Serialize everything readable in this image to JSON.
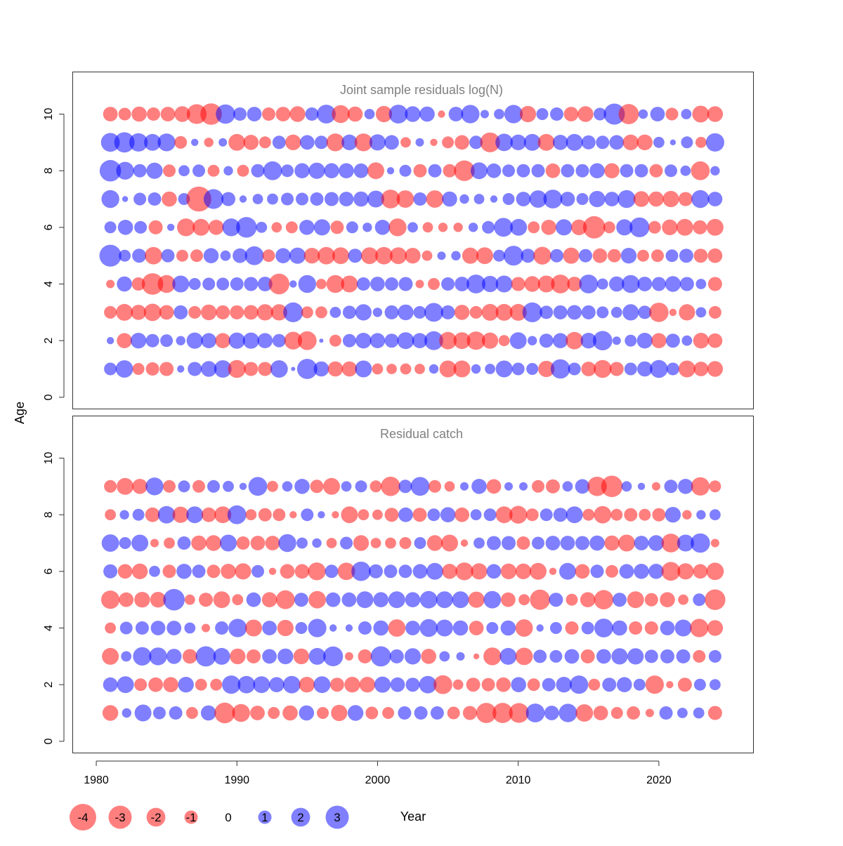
{
  "chart_data": {
    "type": "bubble",
    "xlabel": "Year",
    "ylabel": "Age",
    "xlim": [
      1978.3,
      2026.7
    ],
    "xticks": [
      1980,
      1990,
      2000,
      2010,
      2020
    ],
    "xtick_labels": [
      "1980",
      "1990",
      "2000",
      "2010",
      "2020"
    ],
    "yticks": [
      0,
      2,
      4,
      6,
      8,
      10
    ],
    "ytick_labels": [
      "0",
      "2",
      "4",
      "6",
      "8",
      "10"
    ],
    "color_negative": "#ff0000",
    "color_positive": "#0000ff",
    "legend": {
      "placement": "bottom",
      "values": [
        -4,
        -3,
        -2,
        -1,
        0,
        1,
        2,
        3
      ],
      "labels": [
        "-4",
        "-3",
        "-2",
        "-1",
        "0",
        "1",
        "2",
        "3"
      ]
    },
    "panels": [
      {
        "title": "Joint sample residuals log(N)",
        "ylim": [
          -0.4,
          11.5
        ],
        "years_start": 1981,
        "years_end": 2024,
        "ages": [
          1,
          2,
          3,
          4,
          5,
          6,
          7,
          8,
          9,
          10
        ],
        "residuals": {
          "10": [
            -1.2,
            -0.9,
            -1.3,
            -1.0,
            -1.2,
            -1.4,
            -2.2,
            -2.6,
            2.1,
            1.0,
            1.2,
            -1.0,
            -1.2,
            -1.4,
            1.0,
            2.0,
            -1.8,
            -1.3,
            0.6,
            -1.5,
            2.0,
            1.4,
            1.3,
            -0.3,
            1.2,
            1.9,
            0.4,
            0.6,
            1.9,
            -1.5,
            0.8,
            1.0,
            -1.2,
            -1.4,
            0.9,
            2.5,
            -2.3,
            0.5,
            1.2,
            -0.9,
            0.6,
            -1.6,
            -1.4
          ],
          "9": [
            2.0,
            2.3,
            1.9,
            1.6,
            1.8,
            -0.9,
            0.3,
            -0.5,
            0.4,
            -1.6,
            -1.3,
            -0.8,
            1.0,
            -1.4,
            1.2,
            1.0,
            -1.8,
            1.4,
            -1.8,
            1.5,
            1.2,
            -0.6,
            0.4,
            -0.3,
            -0.8,
            -1.2,
            1.0,
            -2.2,
            1.7,
            1.4,
            1.6,
            -1.6,
            1.3,
            1.6,
            1.1,
            1.0,
            1.2,
            -1.4,
            -1.4,
            0.7,
            0.2,
            0.8,
            -0.7,
            1.9
          ],
          "8": [
            2.6,
            1.8,
            1.0,
            1.5,
            -0.9,
            0.7,
            0.9,
            -0.8,
            0.5,
            -0.8,
            1.0,
            2.0,
            0.9,
            1.3,
            1.5,
            1.3,
            1.3,
            1.2,
            -1.6,
            0.3,
            0.8,
            -1.0,
            1.0,
            -1.0,
            -2.4,
            1.6,
            1.2,
            0.9,
            1.0,
            1.0,
            -1.2,
            1.0,
            1.0,
            1.3,
            -1.3,
            1.0,
            1.0,
            -1.0,
            0.9,
            0.6,
            -2.0,
            0.5
          ],
          "7": [
            1.8,
            0.2,
            0.9,
            1.0,
            -1.3,
            0.8,
            -3.5,
            2.2,
            1.1,
            0.3,
            0.6,
            0.7,
            0.9,
            0.9,
            1.0,
            1.1,
            1.2,
            1.3,
            1.6,
            -2.0,
            -1.7,
            1.0,
            -1.7,
            1.3,
            0.5,
            0.6,
            0.3,
            0.8,
            1.2,
            1.7,
            2.0,
            1.2,
            0.8,
            1.5,
            1.2,
            1.8,
            -1.4,
            -1.3,
            -1.5,
            -1.1,
            1.8,
            1.2
          ],
          "6": [
            0.8,
            1.3,
            0.9,
            -1.1,
            0.3,
            -1.8,
            -1.6,
            -1.3,
            1.8,
            2.4,
            0.7,
            -0.6,
            -0.8,
            1.3,
            1.5,
            -1.0,
            0.8,
            0.5,
            1.3,
            -1.8,
            0.6,
            -0.6,
            -0.5,
            -0.5,
            0.5,
            0.9,
            2.0,
            1.6,
            -0.8,
            -1.3,
            1.5,
            -1.4,
            -2.8,
            -0.8,
            1.5,
            2.2,
            -0.9,
            -1.4,
            -1.6,
            -1.1,
            -1.6
          ],
          "5": [
            2.7,
            0.8,
            1.1,
            -1.7,
            1.0,
            -0.8,
            -0.9,
            1.3,
            0.6,
            1.2,
            2.0,
            -0.9,
            1.3,
            1.5,
            -1.4,
            -1.7,
            -1.6,
            1.1,
            -1.6,
            -1.7,
            -1.6,
            -1.4,
            -0.6,
            0.4,
            0.5,
            -1.5,
            -1.6,
            0.8,
            2.2,
            1.1,
            -1.8,
            1.0,
            -1.5,
            1.0,
            -1.2,
            -1.0,
            1.4,
            -0.8,
            -0.9,
            0.9,
            1.1,
            -1.1,
            -1.2
          ],
          "4": [
            -0.4,
            1.3,
            -1.0,
            -2.6,
            -1.8,
            1.6,
            0.8,
            0.9,
            0.9,
            1.0,
            1.1,
            1.2,
            -2.4,
            0.3,
            1.8,
            -0.6,
            -1.8,
            -1.6,
            1.0,
            1.2,
            1.0,
            1.1,
            -0.4,
            -0.8,
            1.0,
            1.2,
            2.0,
            1.5,
            1.6,
            -1.1,
            -1.4,
            -1.6,
            -2.0,
            -1.2,
            2.0,
            0.7,
            1.3,
            1.8,
            1.2,
            1.1,
            1.4,
            1.1,
            0.6,
            -1.1
          ],
          "3": [
            -0.9,
            -1.6,
            -1.3,
            -1.7,
            -1.2,
            1.1,
            -0.9,
            -1.4,
            -1.1,
            -1.1,
            -1.2,
            -1.5,
            -1.5,
            2.2,
            -0.8,
            -0.8,
            0.7,
            1.0,
            1.5,
            0.5,
            1.1,
            1.4,
            0.9,
            2.0,
            1.1,
            -1.3,
            -0.9,
            -1.6,
            -1.6,
            -1.6,
            2.2,
            1.0,
            1.1,
            1.2,
            1.1,
            0.8,
            0.7,
            1.5,
            1.0,
            -2.1,
            -0.3,
            -1.5,
            0.6,
            -0.9
          ],
          "2": [
            0.3,
            -1.3,
            1.4,
            1.0,
            0.9,
            0.5,
            1.5,
            1.3,
            -1.3,
            1.5,
            1.5,
            1.3,
            1.0,
            -1.8,
            -2.0,
            0.1,
            -0.8,
            1.0,
            1.4,
            1.3,
            1.1,
            1.6,
            1.3,
            2.0,
            -1.7,
            -1.6,
            -1.9,
            -1.5,
            -0.7,
            1.6,
            0.5,
            1.1,
            1.3,
            -1.7,
            1.4,
            2.1,
            0.4,
            0.8,
            1.4,
            -1.3,
            1.1,
            0.6,
            -1.4,
            -1.2
          ],
          "1": [
            0.9,
            1.7,
            -0.8,
            -1.0,
            -1.1,
            0.3,
            1.1,
            1.4,
            1.7,
            -1.8,
            -1.1,
            -1.1,
            1.7,
            0.1,
            2.3,
            1.3,
            -1.3,
            -1.3,
            1.6,
            -0.7,
            -0.6,
            -0.7,
            -0.6,
            0.5,
            -1.6,
            -1.6,
            0.5,
            0.6,
            1.6,
            0.9,
            0.8,
            -1.5,
            2.1,
            0.9,
            -1.2,
            -1.8,
            -1.1,
            0.9,
            1.3,
            1.8,
            0.9,
            -1.6,
            -1.2,
            -1.4
          ]
        }
      },
      {
        "title": "Residual catch",
        "ylim": [
          -0.4,
          11.5
        ],
        "years_start": 1981,
        "years_end": 2024,
        "ages": [
          1,
          2,
          3,
          4,
          5,
          6,
          7,
          8,
          9
        ],
        "residuals": {
          "9": [
            -0.9,
            -1.6,
            -1.3,
            1.8,
            -0.9,
            0.8,
            -0.9,
            0.9,
            0.7,
            0.3,
            2.0,
            -0.7,
            0.6,
            1.3,
            -1.0,
            -1.6,
            0.6,
            0.8,
            -0.8,
            -2.1,
            1.0,
            2.0,
            -0.9,
            -0.6,
            0.4,
            1.3,
            -1.2,
            0.4,
            0.4,
            -0.9,
            -1.1,
            0.6,
            1.2,
            -2.1,
            -2.6,
            0.6,
            0.3,
            -0.4,
            1.0,
            1.3,
            -1.9,
            -0.8
          ],
          "8": [
            -0.7,
            0.5,
            0.8,
            -1.2,
            1.7,
            -1.5,
            1.6,
            -1.2,
            -1.6,
            2.0,
            -0.7,
            -1.0,
            -0.9,
            -0.3,
            0.9,
            0.3,
            -0.3,
            -1.6,
            -0.7,
            -0.6,
            -1.1,
            1.2,
            -1.1,
            0.9,
            1.3,
            -1.2,
            0.7,
            0.9,
            -1.6,
            -1.8,
            -0.9,
            0.9,
            1.1,
            1.6,
            -0.8,
            -1.7,
            -0.8,
            -1.0,
            -0.8,
            -1.0,
            1.4,
            -0.5,
            0.5,
            0.7
          ],
          "7": [
            1.7,
            0.8,
            1.6,
            -0.4,
            -0.7,
            1.0,
            -1.3,
            -1.4,
            1.6,
            -1.0,
            -1.2,
            -1.2,
            1.8,
            0.7,
            0.5,
            -0.6,
            0.9,
            -1.4,
            -0.6,
            -0.7,
            -0.8,
            0.8,
            -1.4,
            -1.6,
            -0.3,
            0.7,
            1.1,
            1.1,
            -1.0,
            0.9,
            1.2,
            1.2,
            1.1,
            1.3,
            -1.3,
            -1.6,
            1.2,
            1.4,
            -2.0,
            1.6,
            2.1,
            -0.4
          ],
          "6": [
            1.1,
            -1.2,
            -1.4,
            0.7,
            -1.0,
            1.3,
            1.0,
            -1.0,
            -1.3,
            -1.5,
            0.9,
            -0.3,
            -1.2,
            -1.2,
            -1.8,
            1.0,
            -1.7,
            2.1,
            1.1,
            1.0,
            1.0,
            1.2,
            1.6,
            -1.3,
            -1.8,
            -1.5,
            1.2,
            -1.4,
            -1.4,
            -1.6,
            -0.3,
            1.6,
            -1.2,
            1.0,
            -0.9,
            1.2,
            1.3,
            1.3,
            -2.0,
            -1.5,
            -1.2,
            -1.7
          ],
          "5": [
            -1.9,
            -1.2,
            -1.4,
            -1.4,
            2.6,
            -0.6,
            -1.1,
            -1.6,
            -0.7,
            1.2,
            -1.3,
            -2.0,
            1.1,
            -1.7,
            1.2,
            1.2,
            1.6,
            1.3,
            1.6,
            1.3,
            1.7,
            1.6,
            1.6,
            -1.5,
            1.7,
            -1.2,
            -0.7,
            -2.3,
            1.1,
            -0.8,
            -1.3,
            -2.1,
            1.1,
            -1.6,
            -1.0,
            -1.3,
            -0.6,
            0.9,
            -2.4
          ],
          "4": [
            -0.7,
            0.9,
            1.0,
            1.2,
            1.2,
            0.7,
            -0.4,
            1.0,
            1.9,
            -1.6,
            1.2,
            -1.5,
            0.8,
            1.9,
            0.3,
            0.3,
            1.0,
            1.3,
            -1.7,
            1.2,
            1.8,
            1.6,
            1.3,
            -1.2,
            0.8,
            1.3,
            -1.7,
            0.3,
            0.8,
            -1.0,
            0.9,
            2.0,
            1.3,
            -1.0,
            -1.0,
            1.2,
            1.6,
            -1.9,
            -1.4
          ],
          "3": [
            -1.6,
            0.6,
            1.9,
            1.8,
            1.3,
            -1.2,
            2.3,
            1.6,
            -1.4,
            -1.1,
            1.2,
            1.4,
            -1.4,
            1.6,
            2.2,
            -0.4,
            -1.1,
            2.3,
            1.1,
            1.5,
            -1.3,
            0.6,
            0.4,
            -0.2,
            -1.8,
            1.6,
            -1.7,
            1.0,
            0.9,
            1.2,
            -1.1,
            1.2,
            1.5,
            1.5,
            1.0,
            1.1,
            1.1,
            -0.9,
            0.9
          ],
          "2": [
            1.2,
            1.6,
            -0.9,
            -1.2,
            -1.3,
            1.4,
            -0.8,
            -0.8,
            1.9,
            1.7,
            1.6,
            1.3,
            1.7,
            -1.4,
            1.6,
            -1.1,
            -1.4,
            -1.4,
            1.5,
            1.2,
            1.1,
            1.7,
            -2.0,
            -0.6,
            -1.1,
            -1.0,
            -1.2,
            1.3,
            -0.9,
            1.0,
            1.4,
            1.9,
            -0.8,
            1.1,
            1.3,
            0.8,
            -1.9,
            -0.3,
            -1.1,
            0.8,
            0.7
          ],
          "1": [
            -1.4,
            0.5,
            1.6,
            0.9,
            1.0,
            -0.8,
            1.3,
            -2.4,
            -1.8,
            -1.2,
            -0.8,
            -1.3,
            1.3,
            -0.8,
            -1.5,
            1.4,
            -0.9,
            -0.8,
            1.0,
            1.0,
            1.0,
            -0.9,
            -1.1,
            -2.3,
            -2.3,
            -2.2,
            2.0,
            1.2,
            1.9,
            -1.7,
            -1.2,
            -0.8,
            -1.0,
            -0.4,
            1.0,
            0.6,
            0.7,
            -1.1
          ]
        }
      }
    ]
  }
}
